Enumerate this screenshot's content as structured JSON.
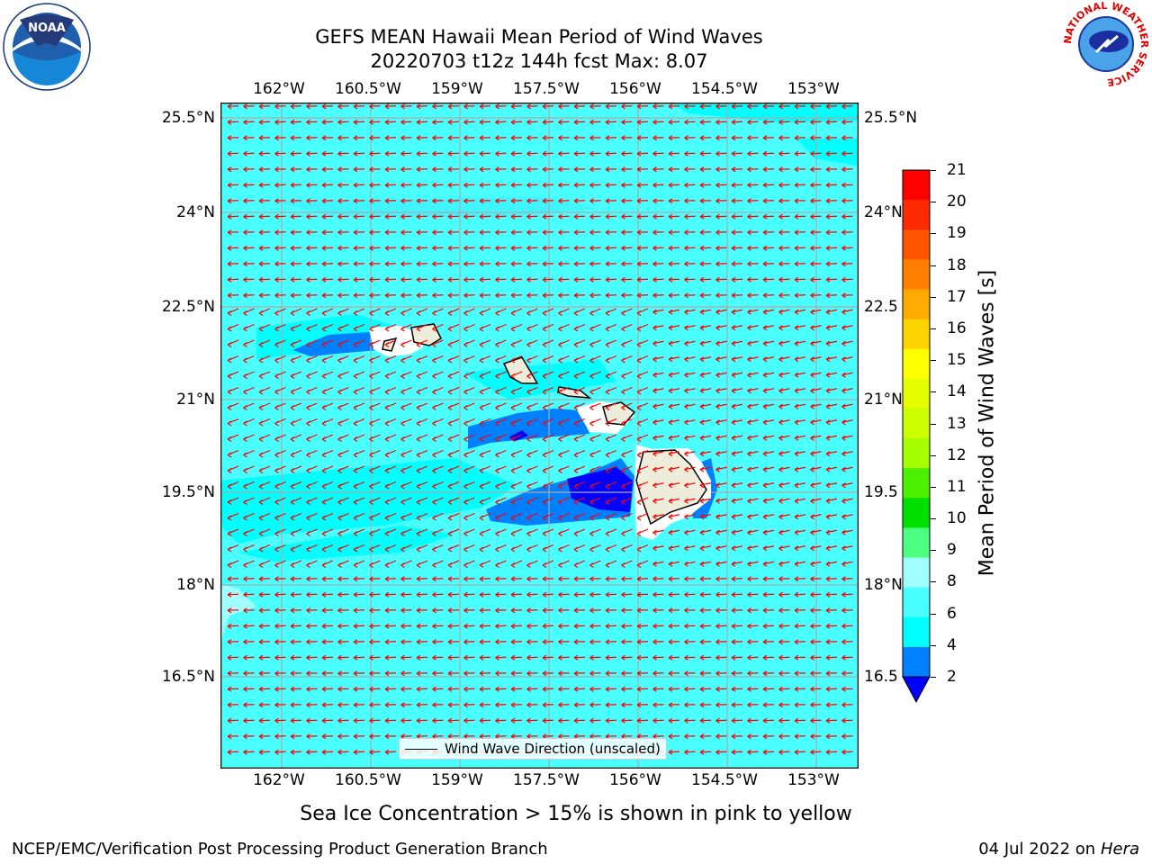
{
  "title": {
    "line1": "GEFS MEAN Hawaii Mean Period of Wind Waves",
    "line2": "20220703 t12z 144h fcst   Max: 8.07"
  },
  "map": {
    "lon_ticks": [
      "162°W",
      "160.5°W",
      "159°W",
      "157.5°W",
      "156°W",
      "154.5°W",
      "153°W"
    ],
    "lat_ticks": [
      "25.5°N",
      "24°N",
      "22.5°N",
      "21°N",
      "19.5°N",
      "18°N",
      "16.5°N"
    ],
    "lat_ticks_right": [
      "25.5°N",
      "24°N",
      "22.5",
      "21°N",
      "19.5",
      "18°N",
      "16.5"
    ],
    "legend_label": "Wind Wave Direction (unscaled)",
    "background_color": "#49ffff",
    "arrow_color": "#ff0000"
  },
  "colorbar": {
    "label": "Mean Period of Wind Waves [s]",
    "ticks": [
      "21",
      "20",
      "19",
      "18",
      "17",
      "16",
      "15",
      "14",
      "13",
      "12",
      "11",
      "10",
      "9",
      "8",
      "6",
      "4",
      "2"
    ],
    "colors": [
      "#ff0000",
      "#ff2a00",
      "#ff5500",
      "#ff8000",
      "#ffaa00",
      "#ffd400",
      "#ffff00",
      "#e5ff00",
      "#ccff00",
      "#a6ff00",
      "#4cf000",
      "#00e000",
      "#4cff80",
      "#a0ffff",
      "#49ffff",
      "#00ffff",
      "#0080ff"
    ],
    "under_color": "#0000ff"
  },
  "footer": {
    "sea_ice_note": "Sea Ice Concentration > 15% is shown in pink to yellow",
    "left": "NCEP/EMC/Verification Post Processing Product Generation Branch",
    "right_date": "04 Jul 2022 on ",
    "right_host": "Hera"
  },
  "logos": {
    "noaa_text": "NOAA",
    "nws_text": "NATIONAL WEATHER SERVICE"
  }
}
